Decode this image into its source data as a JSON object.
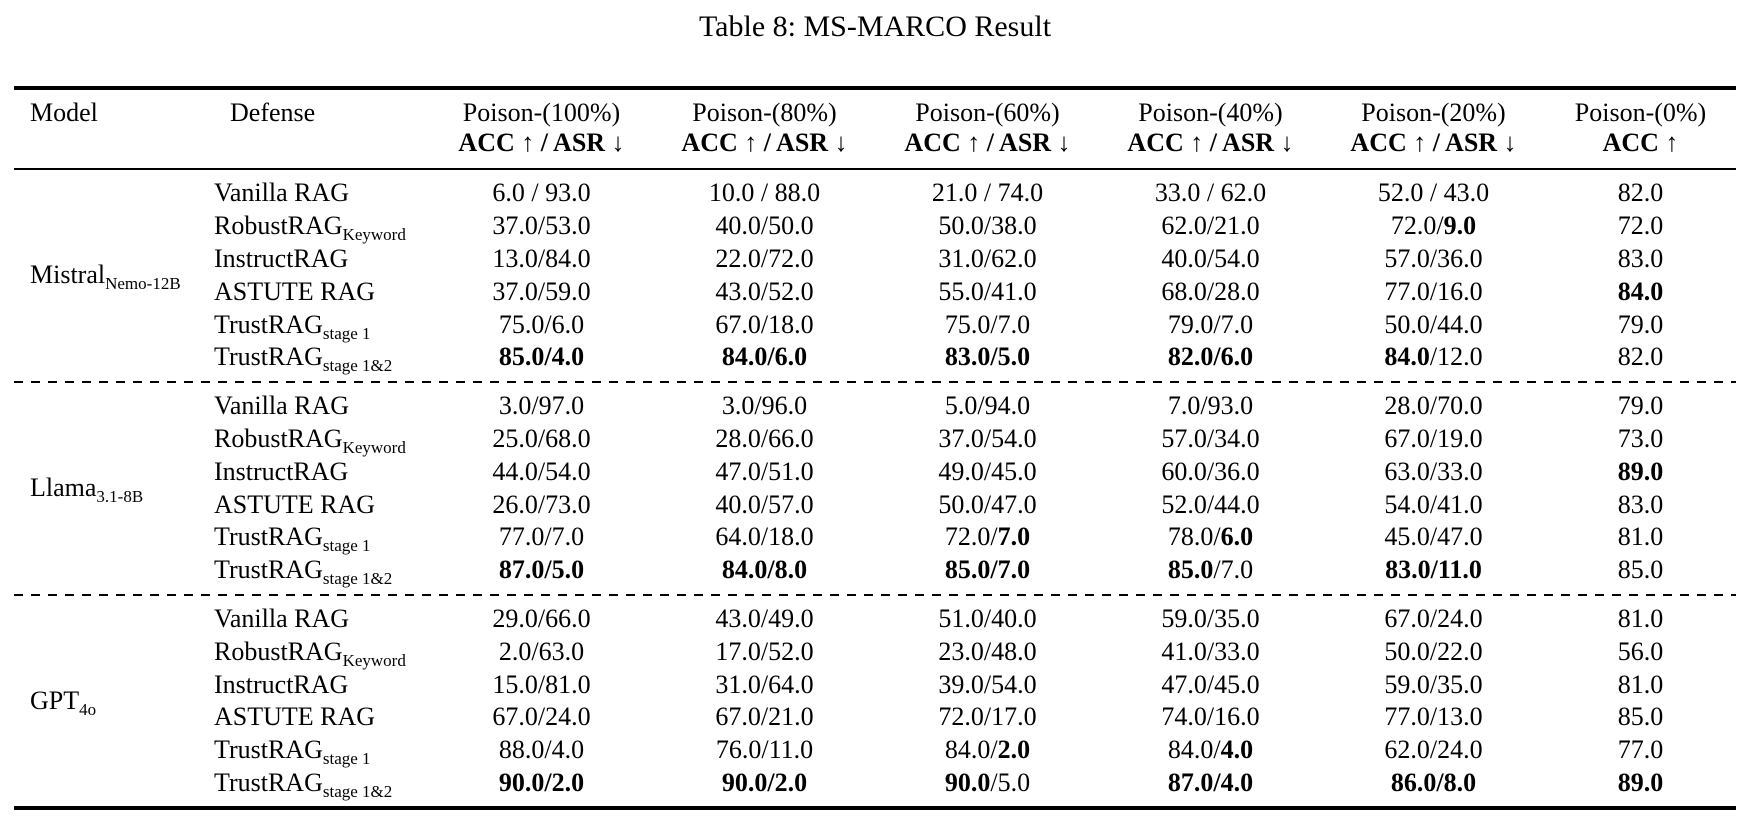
{
  "title": "Table 8: MS-MARCO Result",
  "table": {
    "col_headers": [
      {
        "line1": "Model"
      },
      {
        "line1": "Defense"
      },
      {
        "line1": "Poison-(100%)",
        "line2": "ACC ↑ / ASR ↓"
      },
      {
        "line1": "Poison-(80%)",
        "line2": "ACC ↑ / ASR ↓"
      },
      {
        "line1": "Poison-(60%)",
        "line2": "ACC ↑ / ASR ↓"
      },
      {
        "line1": "Poison-(40%)",
        "line2": "ACC ↑ / ASR ↓"
      },
      {
        "line1": "Poison-(20%)",
        "line2": "ACC ↑ / ASR ↓"
      },
      {
        "line1": "Poison-(0%)",
        "line2": "ACC ↑"
      }
    ],
    "sections": [
      {
        "model": {
          "base": "Mistral",
          "sub": "Nemo-12B"
        },
        "rows": [
          {
            "defense": {
              "base": "Vanilla RAG",
              "sub": ""
            },
            "cells": [
              "6.0 / 93.0",
              "10.0 / 88.0",
              "21.0 / 74.0",
              "33.0 / 62.0",
              "52.0 / 43.0",
              "82.0"
            ]
          },
          {
            "defense": {
              "base": "RobustRAG",
              "sub": "Keyword"
            },
            "cells": [
              "37.0/53.0",
              "40.0/50.0",
              "50.0/38.0",
              "62.0/21.0",
              "72.0/**9.0**",
              "72.0"
            ]
          },
          {
            "defense": {
              "base": "InstructRAG",
              "sub": ""
            },
            "cells": [
              "13.0/84.0",
              "22.0/72.0",
              "31.0/62.0",
              "40.0/54.0",
              "57.0/36.0",
              "83.0"
            ]
          },
          {
            "defense": {
              "base": "ASTUTE RAG",
              "sub": ""
            },
            "cells": [
              "37.0/59.0",
              "43.0/52.0",
              "55.0/41.0",
              "68.0/28.0",
              "77.0/16.0",
              "**84.0**"
            ]
          },
          {
            "defense": {
              "base": "TrustRAG",
              "sub": "stage 1"
            },
            "cells": [
              "75.0/6.0",
              "67.0/18.0",
              "75.0/7.0",
              "79.0/7.0",
              "50.0/44.0",
              "79.0"
            ]
          },
          {
            "defense": {
              "base": "TrustRAG",
              "sub": "stage 1&2"
            },
            "cells": [
              "**85.0/4.0**",
              "**84.0/6.0**",
              "**83.0/5.0**",
              "**82.0/6.0**",
              "**84.0**/12.0",
              "82.0"
            ]
          }
        ]
      },
      {
        "model": {
          "base": "Llama",
          "sub": "3.1-8B"
        },
        "rows": [
          {
            "defense": {
              "base": "Vanilla RAG",
              "sub": ""
            },
            "cells": [
              "3.0/97.0",
              "3.0/96.0",
              "5.0/94.0",
              "7.0/93.0",
              "28.0/70.0",
              "79.0"
            ]
          },
          {
            "defense": {
              "base": "RobustRAG",
              "sub": "Keyword"
            },
            "cells": [
              "25.0/68.0",
              "28.0/66.0",
              "37.0/54.0",
              "57.0/34.0",
              "67.0/19.0",
              "73.0"
            ]
          },
          {
            "defense": {
              "base": "InstructRAG",
              "sub": ""
            },
            "cells": [
              "44.0/54.0",
              "47.0/51.0",
              "49.0/45.0",
              "60.0/36.0",
              "63.0/33.0",
              "**89.0**"
            ]
          },
          {
            "defense": {
              "base": "ASTUTE RAG",
              "sub": ""
            },
            "cells": [
              "26.0/73.0",
              "40.0/57.0",
              "50.0/47.0",
              "52.0/44.0",
              "54.0/41.0",
              "83.0"
            ]
          },
          {
            "defense": {
              "base": "TrustRAG",
              "sub": "stage 1"
            },
            "cells": [
              "77.0/7.0",
              "64.0/18.0",
              "72.0/**7.0**",
              "78.0/**6.0**",
              "45.0/47.0",
              "81.0"
            ]
          },
          {
            "defense": {
              "base": "TrustRAG",
              "sub": "stage 1&2"
            },
            "cells": [
              "**87.0/5.0**",
              "**84.0/8.0**",
              "**85.0/7.0**",
              "**85.0**/7.0",
              "**83.0/11.0**",
              "85.0"
            ]
          }
        ]
      },
      {
        "model": {
          "base": "GPT",
          "sub": "4o"
        },
        "rows": [
          {
            "defense": {
              "base": "Vanilla RAG",
              "sub": ""
            },
            "cells": [
              "29.0/66.0",
              "43.0/49.0",
              "51.0/40.0",
              "59.0/35.0",
              "67.0/24.0",
              "81.0"
            ]
          },
          {
            "defense": {
              "base": "RobustRAG",
              "sub": "Keyword"
            },
            "cells": [
              "2.0/63.0",
              "17.0/52.0",
              "23.0/48.0",
              "41.0/33.0",
              "50.0/22.0",
              "56.0"
            ]
          },
          {
            "defense": {
              "base": "InstructRAG",
              "sub": ""
            },
            "cells": [
              "15.0/81.0",
              "31.0/64.0",
              "39.0/54.0",
              "47.0/45.0",
              "59.0/35.0",
              "81.0"
            ]
          },
          {
            "defense": {
              "base": "ASTUTE RAG",
              "sub": ""
            },
            "cells": [
              "67.0/24.0",
              "67.0/21.0",
              "72.0/17.0",
              "74.0/16.0",
              "77.0/13.0",
              "85.0"
            ]
          },
          {
            "defense": {
              "base": "TrustRAG",
              "sub": "stage 1"
            },
            "cells": [
              "88.0/4.0",
              "76.0/11.0",
              "84.0/**2.0**",
              "84.0/**4.0**",
              "62.0/24.0",
              "77.0"
            ]
          },
          {
            "defense": {
              "base": "TrustRAG",
              "sub": "stage 1&2"
            },
            "cells": [
              "**90.0/2.0**",
              "**90.0/2.0**",
              "**90.0**/5.0",
              "**87.0/4.0**",
              "**86.0/8.0**",
              "**89.0**"
            ]
          }
        ]
      }
    ]
  }
}
